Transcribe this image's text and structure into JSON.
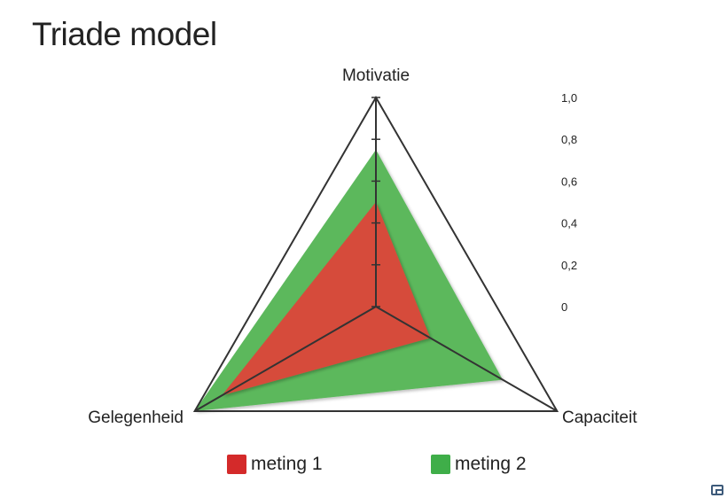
{
  "chart_data": {
    "type": "radar",
    "title": "Triade model",
    "axes": [
      "Motivatie",
      "Capaciteit",
      "Gelegenheid"
    ],
    "rlim": [
      0,
      1.0
    ],
    "ticks": [
      "0",
      "0,2",
      "0,4",
      "0,6",
      "0,8",
      "1,0"
    ],
    "tick_values": [
      0,
      0.2,
      0.4,
      0.6,
      0.8,
      1.0
    ],
    "series": [
      {
        "name": "meting 2",
        "values": [
          0.75,
          0.7,
          1.0
        ],
        "color": "#5cb85c"
      },
      {
        "name": "meting 1",
        "values": [
          0.5,
          0.3,
          0.85
        ],
        "color": "#d64b3a"
      }
    ],
    "legend": [
      {
        "label": "meting 1",
        "color": "#d42a2a"
      },
      {
        "label": "meting 2",
        "color": "#3fae49"
      }
    ],
    "legend_position": "bottom"
  }
}
